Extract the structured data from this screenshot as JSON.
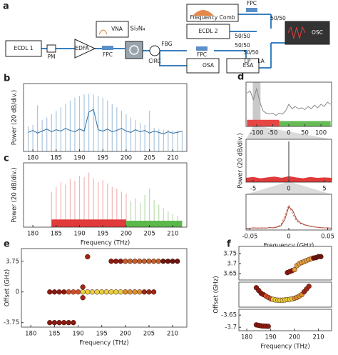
{
  "diagram": {
    "panel": "a",
    "labels": [
      "ECDL 1",
      "PM",
      "EDFA",
      "FPC",
      "VNA",
      "Si₃N₄",
      "CIRC",
      "FBG",
      "FPC",
      "OSA",
      "ESA",
      "Frequency Comb",
      "FPC",
      "ECDL 2",
      "50/50",
      "50/50",
      "50/50",
      "50/50",
      "OSC",
      "LP",
      "LA"
    ]
  },
  "chart_data": [
    {
      "type": "line",
      "panel": "b",
      "ylabel": "Power (20 dB/div.)",
      "xlim": [
        178,
        213
      ],
      "ylim": [
        0,
        100
      ],
      "xticks": [
        180,
        185,
        190,
        195,
        200,
        205,
        210
      ],
      "series": [
        {
          "style": "stem",
          "color": "#a9c6de",
          "x": [
            179,
            180,
            181,
            182,
            183,
            184,
            185,
            186,
            187,
            188,
            189,
            190,
            191,
            192,
            193,
            194,
            195,
            196,
            197,
            198,
            199,
            200,
            201,
            202,
            203,
            204,
            205,
            206,
            207,
            208,
            209,
            210,
            211,
            212
          ],
          "values": [
            37,
            39,
            68,
            46,
            50,
            55,
            60,
            65,
            70,
            75,
            79,
            82,
            84,
            85,
            84,
            82,
            79,
            75,
            70,
            65,
            60,
            55,
            50,
            46,
            42,
            39,
            60,
            35,
            33,
            32,
            32,
            31,
            31,
            30
          ]
        },
        {
          "style": "line",
          "color": "#2e6da4",
          "x": [
            179,
            180,
            181,
            182,
            183,
            184,
            185,
            186,
            187,
            188,
            189,
            190,
            191,
            192,
            193,
            194,
            195,
            196,
            197,
            198,
            199,
            200,
            201,
            202,
            203,
            204,
            205,
            206,
            207,
            208,
            209,
            210,
            211,
            212
          ],
          "values": [
            28,
            31,
            27,
            30,
            33,
            29,
            32,
            30,
            34,
            31,
            29,
            33,
            30,
            58,
            62,
            32,
            30,
            33,
            29,
            31,
            34,
            30,
            28,
            32,
            29,
            31,
            27,
            30,
            28,
            26,
            29,
            27,
            28,
            30
          ]
        }
      ]
    },
    {
      "type": "line",
      "panel": "c",
      "ylabel": "Power (20 dB/div.)",
      "xlabel": "Frequency (THz)",
      "xlim": [
        178,
        213
      ],
      "ylim": [
        0,
        100
      ],
      "xticks": [
        180,
        185,
        190,
        195,
        200,
        205,
        210
      ],
      "series": [
        {
          "style": "stem",
          "color": "#f2b3b3",
          "x": [
            184,
            185,
            186,
            187,
            188,
            189,
            190,
            191,
            192,
            193,
            194,
            195,
            196,
            197,
            198,
            199,
            200
          ],
          "values": [
            55,
            62,
            70,
            66,
            75,
            72,
            80,
            78,
            85,
            76,
            70,
            73,
            68,
            63,
            60,
            55,
            52
          ]
        },
        {
          "style": "stem",
          "color": "#b9dcae",
          "x": [
            201,
            202,
            203,
            204,
            205,
            206,
            207,
            208,
            209,
            210,
            211
          ],
          "values": [
            40,
            45,
            38,
            50,
            60,
            42,
            35,
            30,
            25,
            20,
            18
          ]
        },
        {
          "style": "area",
          "color": "#e03a3a",
          "x": [
            184,
            200
          ],
          "values": [
            12,
            12
          ]
        },
        {
          "style": "area",
          "color": "#5bb84a",
          "x": [
            200,
            212
          ],
          "values": [
            10,
            10
          ]
        }
      ]
    },
    {
      "type": "line",
      "panel": "d",
      "xlim": [
        -133,
        133
      ],
      "ylim": [
        0,
        100
      ],
      "xticks": [
        -100,
        -50,
        0,
        50,
        100
      ],
      "span": [
        -112,
        -88
      ],
      "series": [
        {
          "style": "area",
          "color": "#e84545",
          "x": [
            -130,
            -30
          ],
          "values": [
            15,
            15
          ]
        },
        {
          "style": "area",
          "color": "#66bb55",
          "x": [
            -30,
            130
          ],
          "values": [
            12,
            12
          ]
        },
        {
          "style": "line",
          "color": "#888888",
          "x": [
            -130,
            -120,
            -110,
            -100,
            -90,
            -80,
            -70,
            -60,
            -50,
            -40,
            -30,
            -20,
            -10,
            0,
            10,
            20,
            30,
            40,
            50,
            60,
            70,
            80,
            90,
            100,
            110,
            120,
            130
          ],
          "values": [
            75,
            80,
            60,
            85,
            55,
            35,
            30,
            28,
            30,
            25,
            30,
            28,
            35,
            50,
            40,
            45,
            40,
            42,
            38,
            45,
            40,
            48,
            42,
            50,
            45,
            55,
            50
          ]
        }
      ]
    },
    {
      "type": "line",
      "ylabel": "Power (20 dB/div.)",
      "xlim": [
        -6,
        6
      ],
      "ylim": [
        0,
        100
      ],
      "xticks": [
        -5,
        0,
        5
      ],
      "series": [
        {
          "style": "area",
          "color": "#e03a3a",
          "x": [
            -6,
            -5,
            -4,
            -3,
            -2,
            -1,
            0,
            1,
            2,
            3,
            4,
            5,
            6
          ],
          "values": [
            10,
            12,
            9,
            11,
            13,
            10,
            14,
            11,
            9,
            12,
            10,
            11,
            10
          ]
        },
        {
          "style": "stem",
          "color": "#555555",
          "x": [
            0
          ],
          "values": [
            95
          ]
        }
      ]
    },
    {
      "type": "line",
      "xlabel": "Frequency (GHz)",
      "xlim": [
        -0.055,
        0.055
      ],
      "ylim": [
        0,
        100
      ],
      "xticks": [
        -0.05,
        0,
        0.05
      ],
      "series": [
        {
          "style": "line",
          "color": "#8a4a30",
          "x": [
            -0.055,
            -0.05,
            -0.045,
            -0.04,
            -0.035,
            -0.03,
            -0.025,
            -0.02,
            -0.015,
            -0.01,
            -0.005,
            0,
            0.005,
            0.01,
            0.015,
            0.02,
            0.025,
            0.03,
            0.035,
            0.04,
            0.045,
            0.05,
            0.055
          ],
          "values": [
            5,
            5,
            6,
            5,
            6,
            5,
            7,
            6,
            8,
            12,
            30,
            65,
            55,
            30,
            20,
            15,
            12,
            10,
            8,
            7,
            6,
            6,
            5
          ]
        },
        {
          "style": "line",
          "color": "#e06060",
          "dash": true,
          "x": [
            -0.055,
            -0.05,
            -0.045,
            -0.04,
            -0.035,
            -0.03,
            -0.025,
            -0.02,
            -0.015,
            -0.01,
            -0.005,
            0,
            0.005,
            0.01,
            0.015,
            0.02,
            0.025,
            0.03,
            0.035,
            0.04,
            0.045,
            0.05,
            0.055
          ],
          "values": [
            4,
            5,
            5,
            6,
            5,
            6,
            6,
            7,
            9,
            15,
            40,
            70,
            45,
            25,
            18,
            14,
            11,
            9,
            8,
            7,
            6,
            5,
            5
          ]
        }
      ]
    },
    {
      "type": "scatter",
      "panel": "e",
      "ylabel": "Offset (GHz)",
      "xlabel": "Frequency (THz)",
      "xlim": [
        178,
        213
      ],
      "ylim": [
        -4.3,
        5.3
      ],
      "xticks": [
        180,
        185,
        190,
        195,
        200,
        205,
        210
      ],
      "yticks": [
        3.75,
        0,
        -3.75
      ],
      "series": [
        {
          "color": "#8b1a10",
          "x": [
            184,
            185,
            186,
            187
          ],
          "values": [
            0,
            0,
            0,
            0
          ]
        },
        {
          "color": "#d0502a",
          "x": [
            188,
            189,
            190
          ],
          "values": [
            0,
            0,
            0
          ]
        },
        {
          "color": "#e8d040",
          "x": [
            191,
            192,
            193,
            194,
            195,
            196,
            197,
            198,
            199
          ],
          "values": [
            0,
            0,
            0,
            0,
            0,
            0,
            0,
            0,
            0
          ]
        },
        {
          "color": "#d89030",
          "x": [
            200,
            201,
            202,
            203
          ],
          "values": [
            0,
            0,
            0,
            0
          ]
        },
        {
          "color": "#9a2a15",
          "x": [
            204,
            205,
            206
          ],
          "values": [
            0,
            0,
            0
          ]
        },
        {
          "color": "#8b1a10",
          "x": [
            197,
            198,
            199
          ],
          "values": [
            3.75,
            3.75,
            3.75
          ]
        },
        {
          "color": "#c06030",
          "x": [
            200,
            201,
            202,
            203,
            204,
            205,
            206,
            207
          ],
          "values": [
            3.75,
            3.75,
            3.75,
            3.75,
            3.75,
            3.75,
            3.75,
            3.75
          ]
        },
        {
          "color": "#6a1510",
          "x": [
            208,
            209,
            210,
            211
          ],
          "values": [
            3.75,
            3.75,
            3.75,
            3.75
          ]
        },
        {
          "color": "#8b1a10",
          "x": [
            184,
            185,
            186,
            187,
            188,
            189
          ],
          "values": [
            -3.75,
            -3.75,
            -3.75,
            -3.75,
            -3.75,
            -3.75
          ]
        },
        {
          "color": "#a02515",
          "x": [
            192,
            191,
            191
          ],
          "values": [
            4.3,
            0.6,
            -0.7
          ]
        }
      ]
    },
    {
      "type": "scatter",
      "panel": "f",
      "xlim": [
        176.7,
        215.5
      ],
      "ylim": [
        3.618,
        3.786
      ],
      "yticks": [
        3.75,
        3.7,
        3.65
      ],
      "series": [
        {
          "color": "#8b1a10",
          "x": [
            197,
            198,
            199
          ],
          "values": [
            3.655,
            3.66,
            3.665
          ]
        },
        {
          "color": "#e0a040",
          "x": [
            200,
            201,
            202,
            203,
            204,
            205,
            206,
            207
          ],
          "values": [
            3.67,
            3.69,
            3.7,
            3.705,
            3.71,
            3.715,
            3.72,
            3.725
          ]
        },
        {
          "color": "#6a1510",
          "x": [
            208,
            209,
            210,
            211
          ],
          "values": [
            3.728,
            3.73,
            3.735,
            3.735
          ]
        }
      ]
    },
    {
      "type": "scatter",
      "ylabel": "Offset (GHz)",
      "xlim": [
        176.7,
        215.5
      ],
      "ylim": [
        -0.04,
        0.05
      ],
      "series": [
        {
          "color": "#8b1a10",
          "x": [
            184,
            185,
            186,
            187
          ],
          "values": [
            0.03,
            0.02,
            0.01,
            0.005
          ]
        },
        {
          "color": "#d0502a",
          "x": [
            188,
            189,
            190
          ],
          "values": [
            0,
            -0.005,
            -0.01
          ]
        },
        {
          "color": "#e8d040",
          "x": [
            191,
            192,
            193,
            194,
            195,
            196,
            197,
            198,
            199
          ],
          "values": [
            -0.012,
            -0.014,
            -0.015,
            -0.015,
            -0.015,
            -0.014,
            -0.013,
            -0.012,
            -0.01
          ]
        },
        {
          "color": "#d89030",
          "x": [
            200,
            201,
            202,
            203
          ],
          "values": [
            -0.008,
            -0.005,
            0,
            0.005
          ]
        },
        {
          "color": "#9a2a15",
          "x": [
            204,
            205,
            206
          ],
          "values": [
            0.015,
            0.025,
            0.035
          ]
        }
      ]
    },
    {
      "type": "scatter",
      "xlabel": "Frequency (THz)",
      "xlim": [
        176.7,
        215.5
      ],
      "ylim": [
        -3.714,
        -3.626
      ],
      "xticks": [
        180,
        190,
        200,
        210
      ],
      "yticks": [
        -3.65,
        -3.7
      ],
      "series": [
        {
          "color": "#8b1a10",
          "x": [
            184,
            185,
            186,
            187,
            188,
            189
          ],
          "values": [
            -3.69,
            -3.692,
            -3.694,
            -3.695,
            -3.695,
            -3.696
          ]
        }
      ]
    }
  ]
}
